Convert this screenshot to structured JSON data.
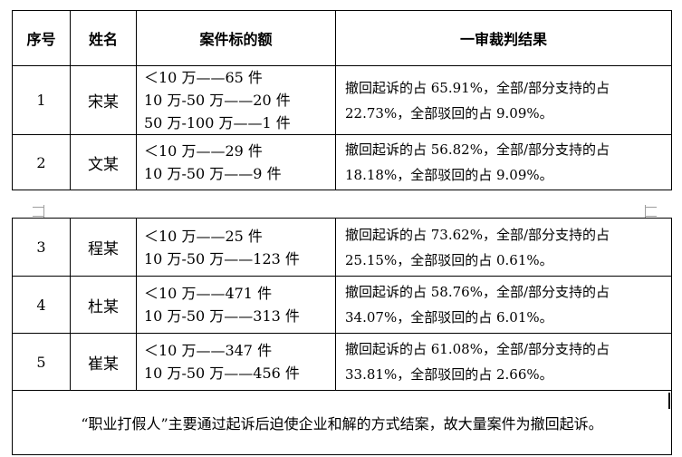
{
  "header": {
    "seq": "序号",
    "name": "姓名",
    "amount": "案件标的额",
    "result": "一审裁判结果"
  },
  "rows": [
    {
      "seq": "1",
      "name": "宋某",
      "amounts": [
        "＜10 万——65 件",
        "10 万-50 万——20 件",
        "50 万-100 万——1 件"
      ],
      "result_lines": [
        "撤回起诉的占 65.91%，全部/部分支持的占",
        "22.73%，全部驳回的占 9.09%。"
      ]
    },
    {
      "seq": "2",
      "name": "文某",
      "amounts": [
        "＜10 万——29 件",
        "10 万-50 万——9 件"
      ],
      "result_lines": [
        "撤回起诉的占 56.82%，全部/部分支持的占",
        "18.18%，全部驳回的占 9.09%。"
      ]
    },
    {
      "seq": "3",
      "name": "程某",
      "amounts": [
        "＜10 万——25 件",
        "10 万-50 万——123 件"
      ],
      "result_lines": [
        "撤回起诉的占 73.62%，全部/部分支持的占",
        "25.15%，全部驳回的占 0.61%。"
      ]
    },
    {
      "seq": "4",
      "name": "杜某",
      "amounts": [
        "＜10 万——471 件",
        "10 万-50 万——313 件"
      ],
      "result_lines": [
        "撤回起诉的占 58.76%，全部/部分支持的占",
        "34.07%，全部驳回的占 6.01%。"
      ]
    },
    {
      "seq": "5",
      "name": "崔某",
      "amounts": [
        "＜10 万——347 件",
        "10 万-50 万——456 件"
      ],
      "result_lines": [
        "撤回起诉的占 61.08%，全部/部分支持的占",
        "33.81%，全部驳回的占 2.66%。"
      ]
    }
  ],
  "note": "“职业打假人”主要通过起诉后迫使企业和解的方式结案，故大量案件为撤回起诉。"
}
